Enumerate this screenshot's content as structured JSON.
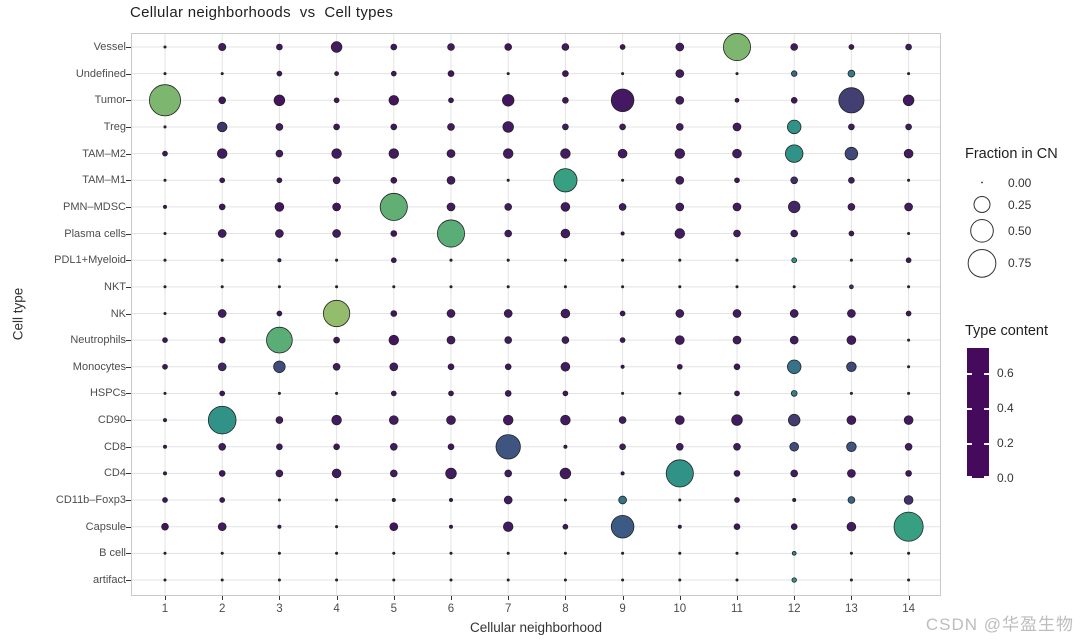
{
  "title": "Cellular neighborhoods  vs  Cell types",
  "axes": {
    "x_label": "Cellular neighborhood",
    "y_label": "Cell type"
  },
  "legends": {
    "size": {
      "title": "Fraction in CN",
      "entries": [
        {
          "label": "0.00",
          "value": 0.0
        },
        {
          "label": "0.25",
          "value": 0.25
        },
        {
          "label": "0.50",
          "value": 0.5
        },
        {
          "label": "0.75",
          "value": 0.75
        }
      ]
    },
    "color": {
      "title": "Type content",
      "ticks": [
        {
          "label": "0.6",
          "value": 0.6
        },
        {
          "label": "0.4",
          "value": 0.4
        },
        {
          "label": "0.2",
          "value": 0.2
        },
        {
          "label": "0.0",
          "value": 0.0
        }
      ],
      "bar_max": 0.74
    }
  },
  "watermark": "CSDN @华盈生物",
  "colors": {
    "grid": "#e3e3e3",
    "panel_border": "#c9c9c9",
    "dot_stroke": "#222222",
    "viridis_stops": [
      [
        0.0,
        "#450a5c"
      ],
      [
        0.2,
        "#433a70"
      ],
      [
        0.4,
        "#3d5c85"
      ],
      [
        0.6,
        "#2e8a8a"
      ],
      [
        0.75,
        "#3aa57f"
      ],
      [
        0.88,
        "#7ab56e"
      ],
      [
        1.0,
        "#b7c768"
      ]
    ]
  },
  "chart_data": {
    "type": "scatter",
    "title": "Cellular neighborhoods vs Cell types",
    "xlabel": "Cellular neighborhood",
    "ylabel": "Cell type",
    "x": [
      1,
      2,
      3,
      4,
      5,
      6,
      7,
      8,
      9,
      10,
      11,
      12,
      13,
      14
    ],
    "size_metric": {
      "name": "Fraction in CN",
      "legend_values": [
        0.0,
        0.25,
        0.5,
        0.75
      ]
    },
    "color_metric": {
      "name": "Type content",
      "range": [
        0.0,
        0.7
      ],
      "colormap": "viridis"
    },
    "rows": [
      {
        "cell_type": "Vessel",
        "fraction": [
          0.005,
          0.05,
          0.033,
          0.11,
          0.033,
          0.045,
          0.045,
          0.045,
          0.023,
          0.06,
          0.72,
          0.045,
          0.023,
          0.033
        ],
        "content": [
          0.02,
          0.05,
          0.03,
          0.05,
          0.03,
          0.05,
          0.03,
          0.05,
          0.03,
          0.05,
          0.62,
          0.05,
          0.03,
          0.05
        ]
      },
      {
        "cell_type": "Undefined",
        "fraction": [
          0.005,
          0.005,
          0.023,
          0.015,
          0.023,
          0.033,
          0.005,
          0.033,
          0.005,
          0.06,
          0.005,
          0.03,
          0.045,
          0.005
        ],
        "content": [
          0.02,
          0.02,
          0.03,
          0.02,
          0.03,
          0.03,
          0.02,
          0.03,
          0.02,
          0.05,
          0.02,
          0.32,
          0.38,
          0.02
        ]
      },
      {
        "cell_type": "Tumor",
        "fraction": [
          0.95,
          0.045,
          0.11,
          0.023,
          0.09,
          0.023,
          0.13,
          0.033,
          0.5,
          0.06,
          0.015,
          0.033,
          0.62,
          0.11
        ],
        "content": [
          0.62,
          0.03,
          0.03,
          0.03,
          0.03,
          0.03,
          0.03,
          0.03,
          0.04,
          0.05,
          0.02,
          0.03,
          0.16,
          0.04
        ]
      },
      {
        "cell_type": "Treg",
        "fraction": [
          0.005,
          0.09,
          0.045,
          0.033,
          0.033,
          0.045,
          0.11,
          0.033,
          0.033,
          0.045,
          0.06,
          0.18,
          0.033,
          0.033
        ],
        "content": [
          0.02,
          0.12,
          0.05,
          0.03,
          0.03,
          0.05,
          0.05,
          0.05,
          0.05,
          0.05,
          0.05,
          0.45,
          0.05,
          0.05
        ]
      },
      {
        "cell_type": "TAM–M2",
        "fraction": [
          0.023,
          0.09,
          0.045,
          0.09,
          0.09,
          0.06,
          0.09,
          0.09,
          0.075,
          0.09,
          0.075,
          0.3,
          0.155,
          0.075
        ],
        "content": [
          0.03,
          0.05,
          0.05,
          0.05,
          0.05,
          0.05,
          0.05,
          0.05,
          0.05,
          0.05,
          0.05,
          0.45,
          0.2,
          0.05
        ]
      },
      {
        "cell_type": "TAM–M1",
        "fraction": [
          0.005,
          0.023,
          0.023,
          0.045,
          0.033,
          0.06,
          0.005,
          0.53,
          0.005,
          0.06,
          0.023,
          0.045,
          0.033,
          0.005
        ],
        "content": [
          0.02,
          0.03,
          0.03,
          0.05,
          0.03,
          0.05,
          0.02,
          0.5,
          0.02,
          0.05,
          0.03,
          0.1,
          0.05,
          0.02
        ]
      },
      {
        "cell_type": "PMN–MDSC",
        "fraction": [
          0.01,
          0.033,
          0.075,
          0.06,
          0.72,
          0.06,
          0.045,
          0.075,
          0.045,
          0.06,
          0.06,
          0.13,
          0.045,
          0.06
        ],
        "content": [
          0.02,
          0.03,
          0.03,
          0.03,
          0.58,
          0.05,
          0.05,
          0.05,
          0.05,
          0.05,
          0.05,
          0.08,
          0.05,
          0.05
        ]
      },
      {
        "cell_type": "Plasma cells",
        "fraction": [
          0.005,
          0.06,
          0.06,
          0.06,
          0.033,
          0.72,
          0.045,
          0.075,
          0.01,
          0.09,
          0.045,
          0.045,
          0.023,
          0.005
        ],
        "content": [
          0.02,
          0.05,
          0.05,
          0.05,
          0.03,
          0.57,
          0.05,
          0.05,
          0.02,
          0.05,
          0.05,
          0.05,
          0.03,
          0.02
        ]
      },
      {
        "cell_type": "PDL1+Myeloid",
        "fraction": [
          0.005,
          0.005,
          0.01,
          0.005,
          0.023,
          0.005,
          0.005,
          0.005,
          0.005,
          0.005,
          0.005,
          0.023,
          0.005,
          0.023
        ],
        "content": [
          0.02,
          0.02,
          0.02,
          0.02,
          0.03,
          0.02,
          0.02,
          0.02,
          0.02,
          0.02,
          0.02,
          0.45,
          0.02,
          0.03
        ]
      },
      {
        "cell_type": "NKT",
        "fraction": [
          0.005,
          0.005,
          0.005,
          0.005,
          0.005,
          0.005,
          0.005,
          0.005,
          0.005,
          0.005,
          0.005,
          0.005,
          0.015,
          0.005
        ],
        "content": [
          0.02,
          0.02,
          0.02,
          0.02,
          0.02,
          0.02,
          0.02,
          0.02,
          0.02,
          0.02,
          0.02,
          0.02,
          0.1,
          0.02
        ]
      },
      {
        "cell_type": "NK",
        "fraction": [
          0.005,
          0.06,
          0.023,
          0.68,
          0.033,
          0.06,
          0.06,
          0.075,
          0.023,
          0.06,
          0.06,
          0.06,
          0.06,
          0.023
        ],
        "content": [
          0.02,
          0.05,
          0.03,
          0.65,
          0.03,
          0.05,
          0.05,
          0.05,
          0.03,
          0.05,
          0.05,
          0.05,
          0.05,
          0.03
        ]
      },
      {
        "cell_type": "Neutrophils",
        "fraction": [
          0.023,
          0.033,
          0.65,
          0.033,
          0.09,
          0.06,
          0.045,
          0.045,
          0.023,
          0.075,
          0.06,
          0.06,
          0.075,
          0.005
        ],
        "content": [
          0.03,
          0.03,
          0.57,
          0.03,
          0.03,
          0.05,
          0.05,
          0.05,
          0.03,
          0.05,
          0.05,
          0.05,
          0.05,
          0.02
        ]
      },
      {
        "cell_type": "Monocytes",
        "fraction": [
          0.023,
          0.06,
          0.13,
          0.045,
          0.06,
          0.033,
          0.033,
          0.075,
          0.01,
          0.023,
          0.033,
          0.18,
          0.09,
          0.005
        ],
        "content": [
          0.03,
          0.08,
          0.22,
          0.05,
          0.05,
          0.03,
          0.03,
          0.05,
          0.02,
          0.03,
          0.03,
          0.35,
          0.2,
          0.02
        ]
      },
      {
        "cell_type": "HSPCs",
        "fraction": [
          0.005,
          0.023,
          0.005,
          0.005,
          0.023,
          0.023,
          0.033,
          0.023,
          0.005,
          0.005,
          0.023,
          0.033,
          0.005,
          0.005
        ],
        "content": [
          0.02,
          0.03,
          0.02,
          0.02,
          0.03,
          0.03,
          0.03,
          0.03,
          0.02,
          0.02,
          0.03,
          0.4,
          0.02,
          0.02
        ]
      },
      {
        "cell_type": "CD90",
        "fraction": [
          0.01,
          0.75,
          0.045,
          0.09,
          0.075,
          0.075,
          0.09,
          0.09,
          0.045,
          0.075,
          0.11,
          0.13,
          0.075,
          0.075
        ],
        "content": [
          0.02,
          0.45,
          0.05,
          0.05,
          0.05,
          0.05,
          0.05,
          0.05,
          0.05,
          0.05,
          0.05,
          0.15,
          0.05,
          0.05
        ]
      },
      {
        "cell_type": "CD8",
        "fraction": [
          0.01,
          0.045,
          0.033,
          0.033,
          0.045,
          0.033,
          0.58,
          0.01,
          0.033,
          0.045,
          0.045,
          0.075,
          0.09,
          0.045
        ],
        "content": [
          0.02,
          0.05,
          0.03,
          0.03,
          0.05,
          0.03,
          0.25,
          0.02,
          0.05,
          0.05,
          0.05,
          0.22,
          0.25,
          0.05
        ]
      },
      {
        "cell_type": "CD4",
        "fraction": [
          0.01,
          0.033,
          0.045,
          0.075,
          0.045,
          0.11,
          0.045,
          0.11,
          0.01,
          0.72,
          0.033,
          0.045,
          0.06,
          0.033
        ],
        "content": [
          0.02,
          0.03,
          0.05,
          0.05,
          0.05,
          0.05,
          0.05,
          0.05,
          0.02,
          0.45,
          0.03,
          0.05,
          0.05,
          0.03
        ]
      },
      {
        "cell_type": "CD11b–Foxp3",
        "fraction": [
          0.023,
          0.023,
          0.005,
          0.005,
          0.01,
          0.01,
          0.06,
          0.005,
          0.06,
          0.005,
          0.023,
          0.01,
          0.045,
          0.075
        ],
        "content": [
          0.03,
          0.03,
          0.02,
          0.02,
          0.02,
          0.02,
          0.05,
          0.02,
          0.35,
          0.02,
          0.03,
          0.02,
          0.3,
          0.12
        ]
      },
      {
        "cell_type": "Capsule",
        "fraction": [
          0.045,
          0.06,
          0.01,
          0.005,
          0.06,
          0.01,
          0.09,
          0.023,
          0.5,
          0.01,
          0.033,
          0.033,
          0.075,
          0.83
        ],
        "content": [
          0.03,
          0.05,
          0.02,
          0.02,
          0.03,
          0.02,
          0.05,
          0.03,
          0.27,
          0.02,
          0.03,
          0.03,
          0.05,
          0.5
        ]
      },
      {
        "cell_type": "B cell",
        "fraction": [
          0.005,
          0.005,
          0.005,
          0.005,
          0.005,
          0.005,
          0.005,
          0.005,
          0.005,
          0.005,
          0.005,
          0.015,
          0.005,
          0.005
        ],
        "content": [
          0.02,
          0.02,
          0.02,
          0.02,
          0.02,
          0.02,
          0.02,
          0.02,
          0.02,
          0.02,
          0.02,
          0.4,
          0.02,
          0.02
        ]
      },
      {
        "cell_type": "artifact",
        "fraction": [
          0.004,
          0.004,
          0.004,
          0.004,
          0.004,
          0.004,
          0.004,
          0.004,
          0.004,
          0.004,
          0.004,
          0.02,
          0.004,
          0.004
        ],
        "content": [
          0.02,
          0.02,
          0.02,
          0.02,
          0.02,
          0.02,
          0.02,
          0.02,
          0.02,
          0.02,
          0.02,
          0.45,
          0.02,
          0.02
        ]
      }
    ]
  }
}
